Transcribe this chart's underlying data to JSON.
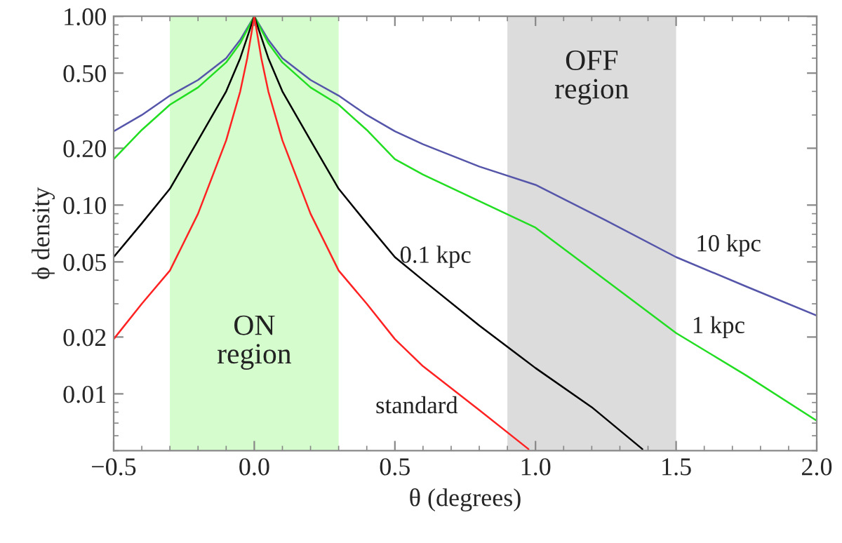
{
  "chart_data": {
    "type": "line",
    "xlabel": "θ (degrees)",
    "ylabel": "ϕ density",
    "log": "y",
    "grid": false,
    "legend": false,
    "xlim": [
      -0.5,
      2.0
    ],
    "xticks": [
      {
        "value": -0.5,
        "label": "−0.5"
      },
      {
        "value": 0.0,
        "label": "0.0"
      },
      {
        "value": 0.5,
        "label": "0.5"
      },
      {
        "value": 1.0,
        "label": "1.0"
      },
      {
        "value": 1.5,
        "label": "1.5"
      },
      {
        "value": 2.0,
        "label": "2.0"
      }
    ],
    "ylim": [
      0.005,
      1.0
    ],
    "yticks": [
      {
        "value": 0.01,
        "label": "0.01"
      },
      {
        "value": 0.02,
        "label": "0.02"
      },
      {
        "value": 0.05,
        "label": "0.05"
      },
      {
        "value": 0.1,
        "label": "0.10"
      },
      {
        "value": 0.2,
        "label": "0.20"
      },
      {
        "value": 0.5,
        "label": "0.50"
      },
      {
        "value": 1.0,
        "label": "1.00"
      }
    ],
    "bands": [
      {
        "axis": "x",
        "from": -0.3,
        "to": 0.3,
        "color": "#d4fccc",
        "label": "ON\nregion"
      },
      {
        "axis": "x",
        "from": 0.9,
        "to": 1.5,
        "color": "#dcdcdc",
        "label": "OFF\nregion"
      }
    ],
    "series": [
      {
        "name": "10 kpc",
        "color": "#5555aa",
        "x": [
          -0.5,
          -0.4,
          -0.3,
          -0.2,
          -0.1,
          -0.05,
          0,
          0.05,
          0.1,
          0.2,
          0.3,
          0.4,
          0.5,
          0.6,
          0.8,
          1.0,
          1.25,
          1.5,
          1.75,
          2.0
        ],
        "values": [
          0.246,
          0.3,
          0.38,
          0.46,
          0.6,
          0.75,
          1.0,
          0.75,
          0.6,
          0.46,
          0.38,
          0.3,
          0.246,
          0.21,
          0.16,
          0.128,
          0.083,
          0.053,
          0.037,
          0.026
        ]
      },
      {
        "name": "1 kpc",
        "color": "#22dd22",
        "x": [
          -0.5,
          -0.4,
          -0.3,
          -0.2,
          -0.1,
          -0.05,
          0,
          0.05,
          0.1,
          0.2,
          0.3,
          0.4,
          0.5,
          0.6,
          0.8,
          1.0,
          1.25,
          1.5,
          1.75,
          2.0
        ],
        "values": [
          0.175,
          0.25,
          0.34,
          0.42,
          0.57,
          0.72,
          1.0,
          0.72,
          0.57,
          0.42,
          0.34,
          0.25,
          0.175,
          0.145,
          0.105,
          0.076,
          0.04,
          0.021,
          0.0125,
          0.0072
        ]
      },
      {
        "name": "0.1 kpc",
        "color": "#000000",
        "x": [
          -0.5,
          -0.4,
          -0.3,
          -0.2,
          -0.1,
          -0.05,
          0,
          0.05,
          0.1,
          0.2,
          0.3,
          0.4,
          0.5,
          0.6,
          0.8,
          1.0,
          1.2,
          1.38
        ],
        "values": [
          0.053,
          0.08,
          0.122,
          0.22,
          0.4,
          0.6,
          1.0,
          0.6,
          0.4,
          0.22,
          0.122,
          0.08,
          0.053,
          0.04,
          0.023,
          0.0137,
          0.0085,
          0.0051
        ]
      },
      {
        "name": "standard",
        "color": "#ff2222",
        "x": [
          -0.5,
          -0.4,
          -0.3,
          -0.2,
          -0.1,
          -0.05,
          -0.025,
          0,
          0.025,
          0.05,
          0.1,
          0.2,
          0.3,
          0.4,
          0.5,
          0.6,
          0.8,
          0.975
        ],
        "values": [
          0.0195,
          0.03,
          0.045,
          0.09,
          0.22,
          0.4,
          0.6,
          1.0,
          0.6,
          0.4,
          0.22,
          0.09,
          0.045,
          0.03,
          0.0195,
          0.014,
          0.0082,
          0.0051
        ]
      }
    ]
  }
}
